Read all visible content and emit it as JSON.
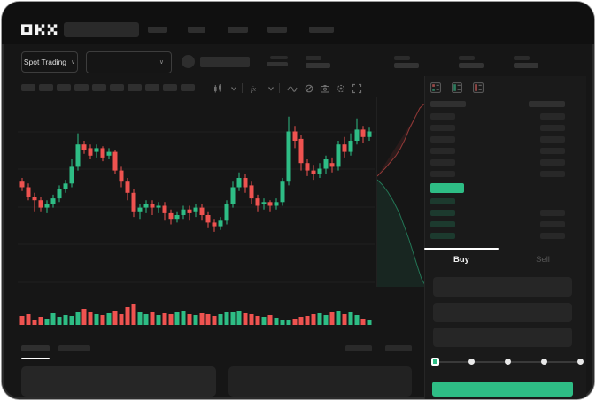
{
  "brand": {
    "logo_text": "OKX"
  },
  "navbar": {
    "nav_placeholder_count": 5
  },
  "market_selector": {
    "label": "Spot Trading",
    "chevron": "∨"
  },
  "pair_selector": {
    "chevron": "∨"
  },
  "toolbar": {
    "timeframe_placeholder_count": 10,
    "icons": [
      "chart-type-candles-icon",
      "chevron-down-icon",
      "indicators-fx-icon",
      "chevron-down-icon",
      "line-tool-icon",
      "eraser-icon",
      "camera-icon",
      "settings-icon",
      "fullscreen-icon"
    ]
  },
  "orderbook": {
    "mode_icons": [
      "book-both-icon",
      "book-bids-icon",
      "book-asks-icon"
    ],
    "ask_row_count": 6,
    "bid_row_count": 4,
    "ask_rows_right_bar": [
      true,
      true,
      true,
      true,
      true,
      true
    ],
    "bid_rows_right_bar": [
      false,
      true,
      true,
      true
    ]
  },
  "trade_panel": {
    "buy_tab_label": "Buy",
    "sell_tab_label": "Sell",
    "field_count": 3,
    "slider_positions_pct": [
      0,
      25,
      50,
      75,
      100
    ],
    "slider_selected_index": 0
  },
  "colors": {
    "up": "#2EBD85",
    "down": "#EF5350",
    "accent_button": "#2EBD85",
    "price_highlight": "#2EBD85",
    "bid_skeleton": "#1c3a2e",
    "skeleton": "#2d2d2d",
    "tab_active_underline": "#ffffff"
  },
  "chart_data": {
    "type": "candlestick",
    "title": "",
    "xlabel": "",
    "ylabel": "",
    "axis_labels_visible": false,
    "scale_note": "normalized 0-100 price scale (no numeric labels visible in image)",
    "grid": true,
    "candles": [
      [
        58,
        60,
        53,
        55
      ],
      [
        55,
        57,
        48,
        50
      ],
      [
        50,
        52,
        42,
        48
      ],
      [
        48,
        50,
        42,
        44
      ],
      [
        44,
        48,
        41,
        46
      ],
      [
        46,
        51,
        44,
        49
      ],
      [
        49,
        56,
        47,
        54
      ],
      [
        54,
        59,
        52,
        57
      ],
      [
        57,
        70,
        55,
        66
      ],
      [
        66,
        84,
        64,
        78
      ],
      [
        78,
        80,
        73,
        75
      ],
      [
        76,
        78,
        70,
        72
      ],
      [
        74,
        78,
        71,
        76
      ],
      [
        76,
        77,
        69,
        71
      ],
      [
        72,
        76,
        70,
        74
      ],
      [
        74,
        75,
        62,
        64
      ],
      [
        64,
        66,
        55,
        58
      ],
      [
        58,
        60,
        48,
        52
      ],
      [
        52,
        54,
        39,
        42
      ],
      [
        42,
        46,
        38,
        44
      ],
      [
        44,
        48,
        41,
        46
      ],
      [
        46,
        48,
        40,
        44
      ],
      [
        44,
        47,
        41,
        45
      ],
      [
        45,
        47,
        37,
        41
      ],
      [
        41,
        43,
        35,
        38
      ],
      [
        38,
        42,
        36,
        40
      ],
      [
        40,
        45,
        38,
        43
      ],
      [
        43,
        45,
        37,
        41
      ],
      [
        42,
        46,
        39,
        44
      ],
      [
        44,
        46,
        37,
        40
      ],
      [
        40,
        42,
        33,
        36
      ],
      [
        36,
        38,
        31,
        34
      ],
      [
        34,
        39,
        32,
        37
      ],
      [
        37,
        48,
        35,
        46
      ],
      [
        46,
        58,
        44,
        55
      ],
      [
        55,
        63,
        53,
        60
      ],
      [
        60,
        62,
        52,
        55
      ],
      [
        56,
        58,
        46,
        49
      ],
      [
        49,
        51,
        42,
        45
      ],
      [
        46,
        49,
        43,
        47
      ],
      [
        47,
        48,
        42,
        45
      ],
      [
        45,
        49,
        43,
        47
      ],
      [
        47,
        60,
        45,
        58
      ],
      [
        58,
        93,
        56,
        85
      ],
      [
        85,
        88,
        76,
        80
      ],
      [
        81,
        83,
        64,
        68
      ],
      [
        68,
        70,
        61,
        64
      ],
      [
        64,
        67,
        59,
        62
      ],
      [
        62,
        68,
        60,
        65
      ],
      [
        65,
        72,
        62,
        70
      ],
      [
        68,
        71,
        63,
        66
      ],
      [
        66,
        80,
        64,
        78
      ],
      [
        78,
        82,
        71,
        74
      ],
      [
        74,
        84,
        72,
        80
      ],
      [
        80,
        92,
        78,
        86
      ],
      [
        86,
        88,
        79,
        82
      ],
      [
        82,
        87,
        80,
        85
      ]
    ],
    "candle_format": "[open, high, low, close]",
    "volume": {
      "type": "bar",
      "values": [
        10,
        12,
        6,
        9,
        7,
        13,
        9,
        11,
        10,
        14,
        18,
        15,
        12,
        11,
        13,
        16,
        12,
        20,
        24,
        14,
        12,
        15,
        11,
        13,
        12,
        14,
        16,
        12,
        11,
        13,
        12,
        10,
        12,
        15,
        14,
        16,
        13,
        12,
        10,
        9,
        11,
        8,
        6,
        5,
        7,
        9,
        10,
        12,
        13,
        11,
        14,
        16,
        12,
        14,
        11,
        7,
        5
      ]
    },
    "depth": {
      "type": "area",
      "asks_line": [
        [
          57,
          4
        ],
        [
          48,
          12
        ],
        [
          42,
          24
        ],
        [
          36,
          36
        ],
        [
          31,
          48
        ],
        [
          26,
          58
        ],
        [
          21,
          66
        ],
        [
          15,
          73
        ],
        [
          9,
          80
        ],
        [
          3,
          86
        ],
        [
          0,
          89
        ]
      ],
      "bids_line": [
        [
          0,
          93
        ],
        [
          6,
          99
        ],
        [
          12,
          107
        ],
        [
          18,
          117
        ],
        [
          25,
          131
        ],
        [
          31,
          147
        ],
        [
          36,
          161
        ],
        [
          41,
          177
        ],
        [
          46,
          193
        ],
        [
          50,
          205
        ],
        [
          54,
          212
        ],
        [
          57,
          214
        ]
      ]
    }
  }
}
